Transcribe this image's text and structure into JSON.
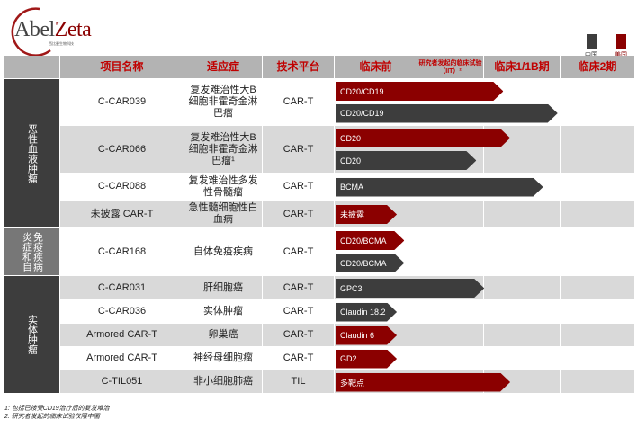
{
  "logo": {
    "text_a": "Abel",
    "text_b": "Zeta",
    "subtitle": "西比曼生物科技"
  },
  "legend": [
    {
      "label": "中国",
      "color": "#3d3d3d"
    },
    {
      "label": "美国",
      "color": "#8b0000"
    }
  ],
  "colors": {
    "china": "#3d3d3d",
    "usa": "#8b0000",
    "header": "#b3b3b3",
    "row_alt": "#d9d9d9"
  },
  "headers": [
    "项目名称",
    "适应症",
    "技术平台",
    "临床前",
    "研究者发起的临床试验（IIT）²",
    "临床1/1B期",
    "临床2期"
  ],
  "stage_scale": {
    "note_stages": [
      "临床前",
      "研究者发起的临床试验（IIT）²",
      "临床1/1B期",
      "临床2期"
    ],
    "range": [
      0,
      4
    ]
  },
  "categories": [
    {
      "label": "恶性血液肿瘤",
      "color": "#3d3d3d"
    },
    {
      "label": "免疫疾病炎症和自",
      "color": "#777777"
    },
    {
      "label": "实体肿瘤",
      "color": "#3d3d3d"
    }
  ],
  "rows": [
    {
      "name": "C-CAR039",
      "indication": "复发难治性大B细胞非霍奇金淋巴瘤",
      "platform": "CAR-T",
      "bars": [
        {
          "label": "CD20/CD19",
          "region": "usa",
          "stage": 2.24
        },
        {
          "label": "CD20/CD19",
          "region": "china",
          "stage": 2.95
        }
      ]
    },
    {
      "name": "C-CAR066",
      "indication": "复发难治性大B细胞非霍奇金淋巴瘤¹",
      "platform": "CAR-T",
      "bars": [
        {
          "label": "CD20",
          "region": "usa",
          "stage": 2.33
        },
        {
          "label": "CD20",
          "region": "china",
          "stage": 1.87
        }
      ]
    },
    {
      "name": "C-CAR088",
      "indication": "复发难治性多发性骨髓瘤",
      "platform": "CAR-T",
      "bars": [
        {
          "label": "BCMA",
          "region": "china",
          "stage": 2.76
        }
      ]
    },
    {
      "name": "未披露 CAR-T",
      "indication": "急性髓细胞性白血病",
      "platform": "CAR-T",
      "bars": [
        {
          "label": "未披露",
          "region": "usa",
          "stage": 0.74
        }
      ]
    },
    {
      "name": "C-CAR168",
      "indication": "自体免疫疾病",
      "platform": "CAR-T",
      "bars": [
        {
          "label": "CD20/BCMA",
          "region": "usa",
          "stage": 0.83
        },
        {
          "label": "CD20/BCMA",
          "region": "china",
          "stage": 0.83
        }
      ]
    },
    {
      "name": "C-CAR031",
      "indication": "肝细胞癌",
      "platform": "CAR-T",
      "bars": [
        {
          "label": "GPC3",
          "region": "china",
          "stage": 1.99
        }
      ]
    },
    {
      "name": "C-CAR036",
      "indication": "实体肿瘤",
      "platform": "CAR-T",
      "bars": [
        {
          "label": "Claudin 18.2",
          "region": "china",
          "stage": 0.74
        }
      ]
    },
    {
      "name": "Armored CAR-T",
      "indication": "卵巢癌",
      "platform": "CAR-T",
      "bars": [
        {
          "label": "Claudin 6",
          "region": "usa",
          "stage": 0.74
        }
      ]
    },
    {
      "name": "Armored CAR-T",
      "indication": "神经母细胞瘤",
      "platform": "CAR-T",
      "bars": [
        {
          "label": "GD2",
          "region": "usa",
          "stage": 0.74
        }
      ]
    },
    {
      "name": "C-TIL051",
      "indication": "非小细胞肺癌",
      "platform": "TIL",
      "bars": [
        {
          "label": "多靶点",
          "region": "usa",
          "stage": 2.33
        }
      ]
    }
  ],
  "footnotes": [
    "1: 包括已接受CD19治疗后的复发难治",
    "2: 研究者发起的临床试验仅限中国"
  ]
}
